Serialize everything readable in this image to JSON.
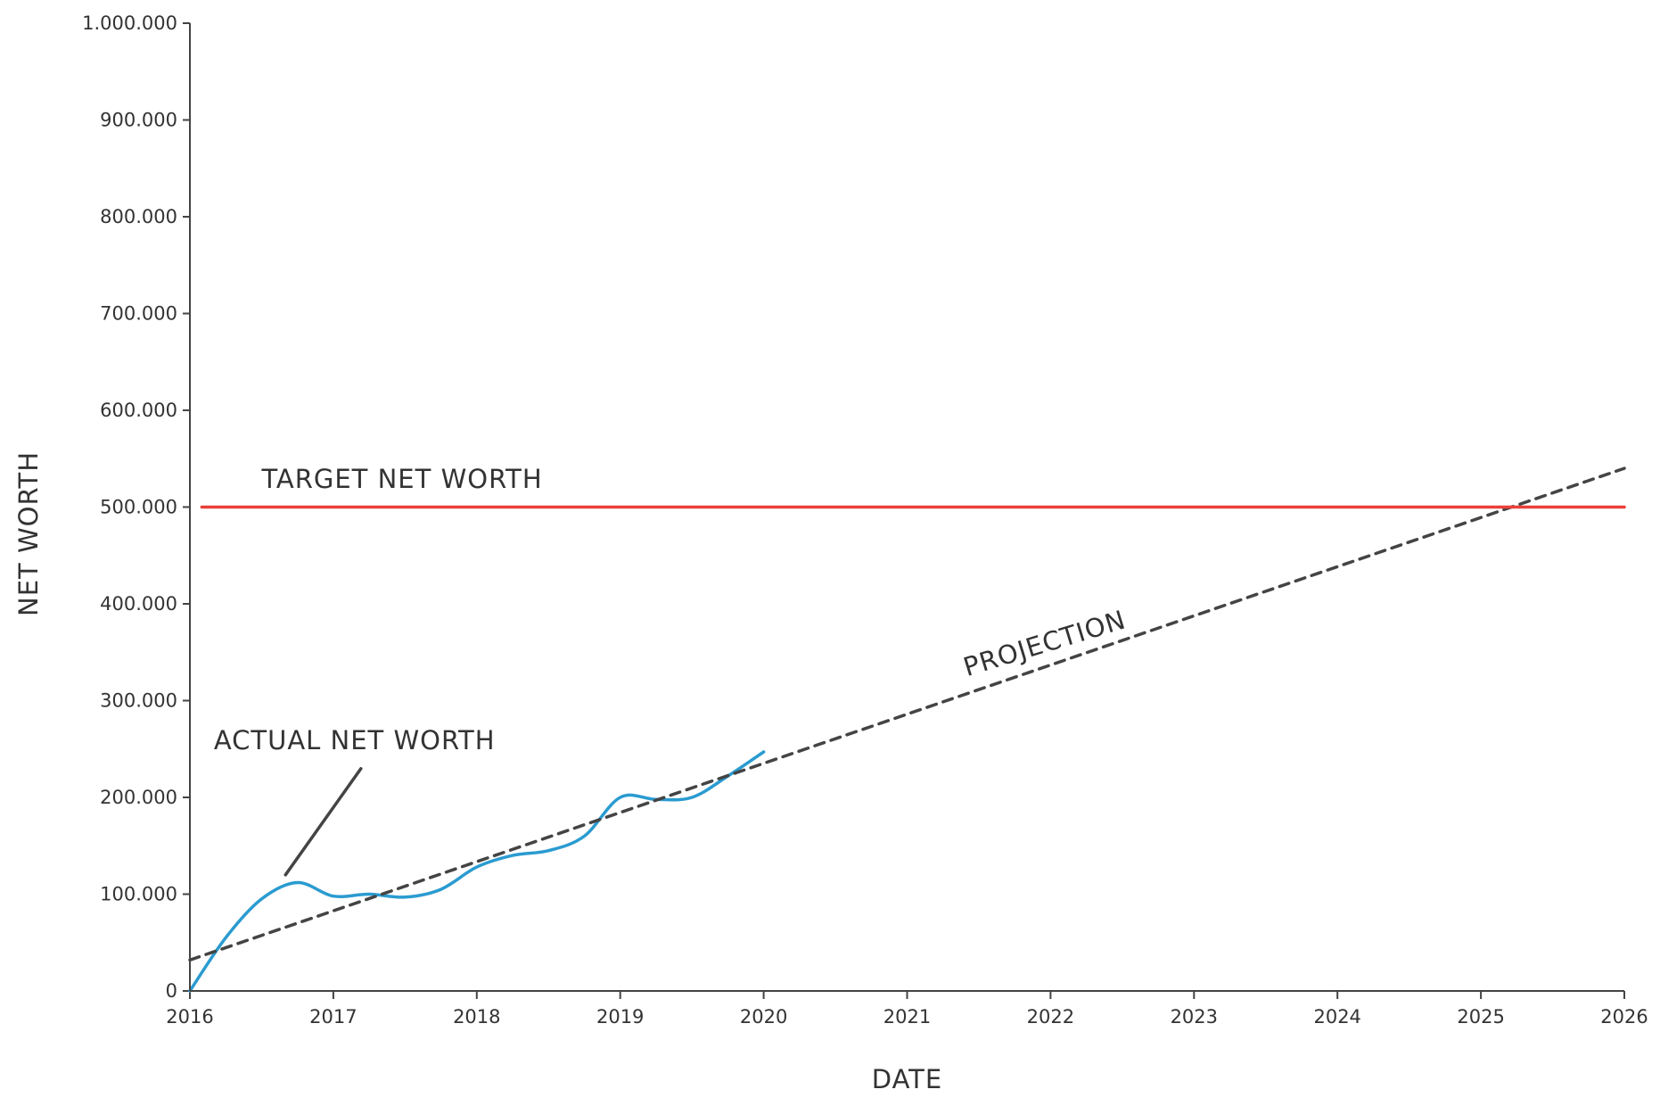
{
  "chart_data": {
    "type": "line",
    "title": "",
    "xlabel": "DATE",
    "ylabel": "NET WORTH",
    "xlim": [
      "2016",
      "2026"
    ],
    "ylim": [
      0,
      1000000
    ],
    "x_ticks": [
      "2016",
      "2017",
      "2018",
      "2019",
      "2020",
      "2021",
      "2022",
      "2023",
      "2024",
      "2025",
      "2026"
    ],
    "y_ticks": [
      {
        "value": 0,
        "label": "0"
      },
      {
        "value": 100000,
        "label": "100.000"
      },
      {
        "value": 200000,
        "label": "200.000"
      },
      {
        "value": 300000,
        "label": "300.000"
      },
      {
        "value": 400000,
        "label": "400.000"
      },
      {
        "value": 500000,
        "label": "500.000"
      },
      {
        "value": 600000,
        "label": "600.000"
      },
      {
        "value": 700000,
        "label": "700.000"
      },
      {
        "value": 800000,
        "label": "800.000"
      },
      {
        "value": 900000,
        "label": "900.000"
      },
      {
        "value": 1000000,
        "label": "1.000.000"
      }
    ],
    "grid": false,
    "legend": "none",
    "series": [
      {
        "style": "solid",
        "color": "#2a9bd0",
        "x": [
          "2016-01",
          "2016-04",
          "2016-07",
          "2016-10",
          "2017-01",
          "2017-04",
          "2017-07",
          "2017-10",
          "2018-01",
          "2018-04",
          "2018-07",
          "2018-10",
          "2019-01",
          "2019-04",
          "2019-07",
          "2019-10",
          "2020-01"
        ],
        "y": [
          0,
          55000,
          95000,
          112000,
          98000,
          100000,
          97000,
          105000,
          128000,
          140000,
          145000,
          160000,
          200000,
          198000,
          200000,
          222000,
          247000
        ]
      },
      {
        "style": "dashed",
        "color": "#444444",
        "x": [
          "2016-01",
          "2026-01"
        ],
        "y": [
          32000,
          540000
        ]
      },
      {
        "style": "solid",
        "color": "#e8403a",
        "x": [
          "2016-02",
          "2026-01"
        ],
        "y": [
          500000,
          500000
        ]
      }
    ],
    "annotations": [
      {
        "text": "TARGET NET WORTH",
        "x": "2016-07",
        "y": 520000
      },
      {
        "text": "ACTUAL NET WORTH",
        "x": "2016-03",
        "y": 250000,
        "pointer_x": "2016-09",
        "pointer_y": 120000
      },
      {
        "text": "PROJECTION",
        "x": "2021-06",
        "y": 325000
      }
    ]
  }
}
